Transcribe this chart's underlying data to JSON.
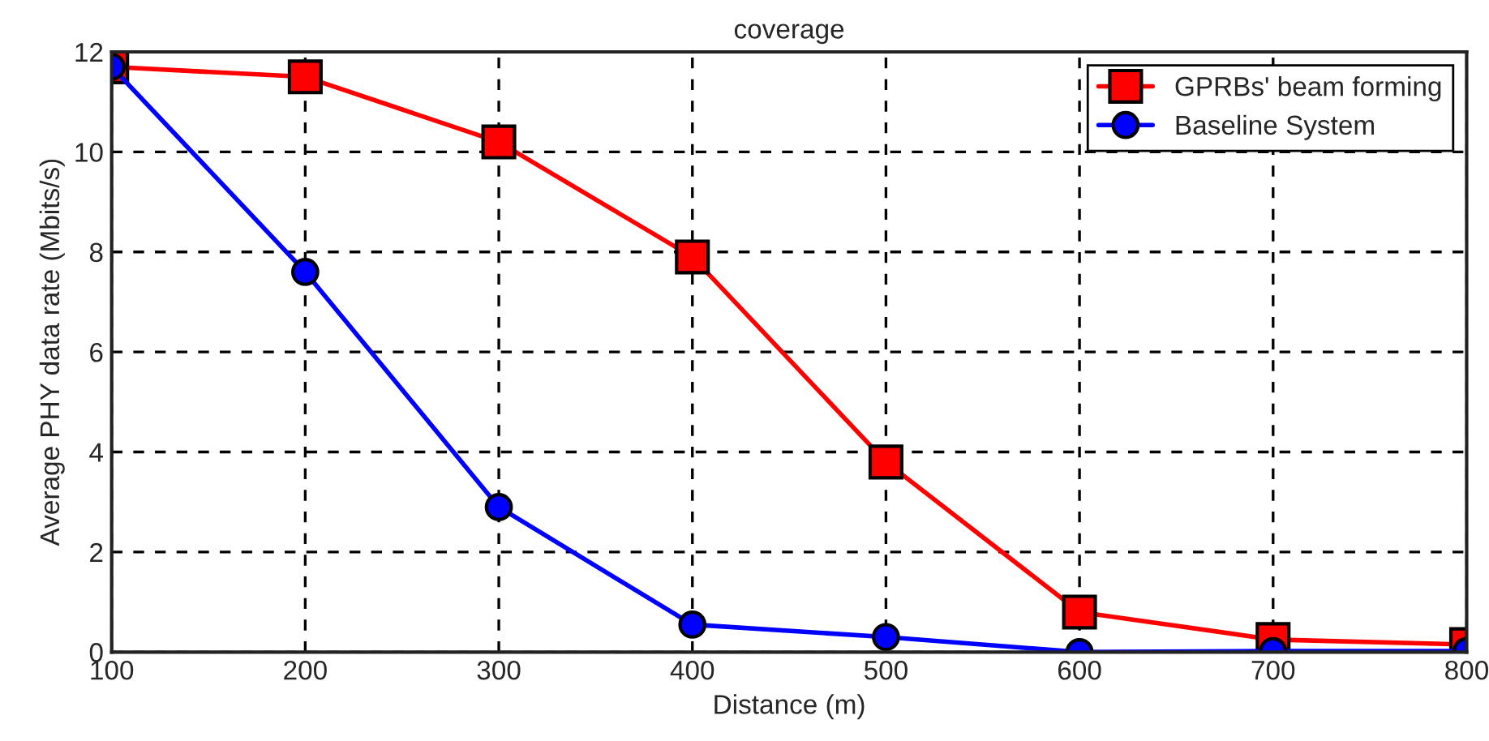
{
  "chart_data": {
    "type": "line",
    "title": "coverage",
    "xlabel": "Distance (m)",
    "ylabel": "Average PHY data rate (Mbits/s)",
    "x": [
      100,
      200,
      300,
      400,
      500,
      600,
      700,
      800
    ],
    "series": [
      {
        "name": "GPRBs' beam forming",
        "color": "#ff0000",
        "marker": "square",
        "values": [
          11.7,
          11.5,
          10.2,
          7.9,
          3.8,
          0.8,
          0.25,
          0.15
        ]
      },
      {
        "name": "Baseline System",
        "color": "#0000ff",
        "marker": "circle",
        "values": [
          11.7,
          7.6,
          2.9,
          0.55,
          0.3,
          0,
          0.02,
          0.02
        ]
      }
    ],
    "xlim": [
      100,
      800
    ],
    "xticks": [
      100,
      200,
      300,
      400,
      500,
      600,
      700,
      800
    ],
    "ylim": [
      0,
      12
    ],
    "yticks": [
      0,
      2,
      4,
      6,
      8,
      10,
      12
    ],
    "grid": true,
    "legend": "top right",
    "line_style": "solid"
  }
}
